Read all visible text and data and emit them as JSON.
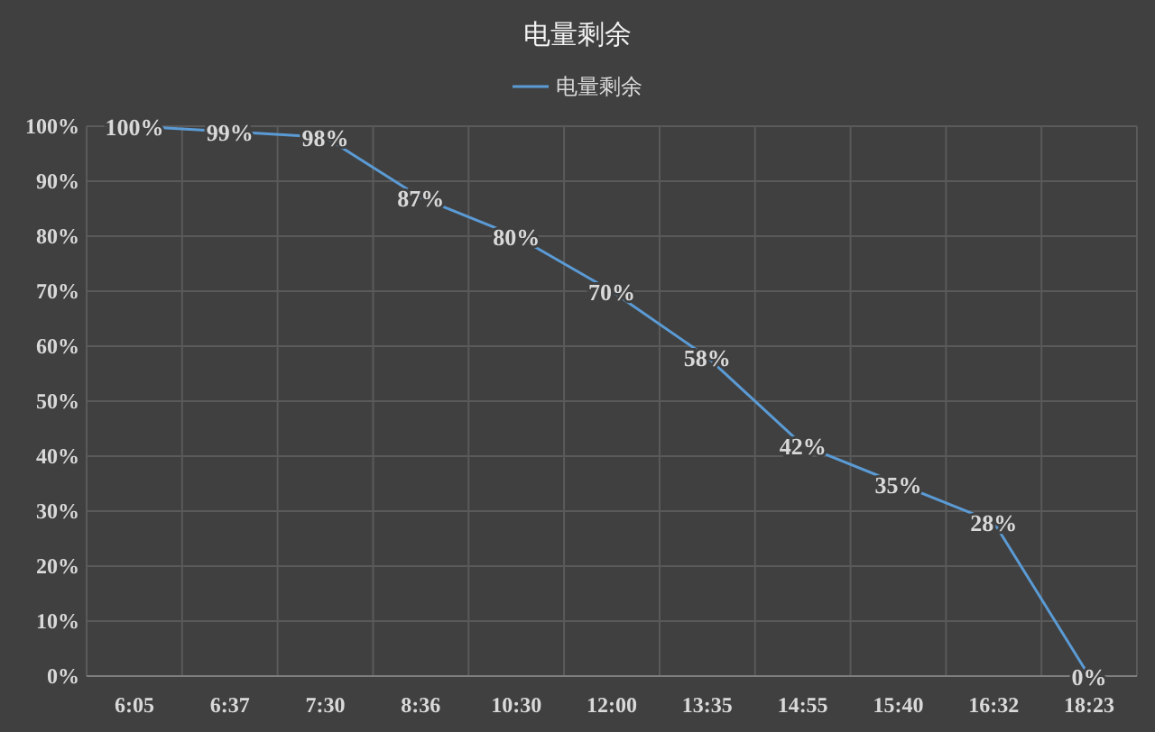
{
  "chart_data": {
    "type": "line",
    "title": "电量剩余",
    "categories": [
      "6:05",
      "6:37",
      "7:30",
      "8:36",
      "10:30",
      "12:00",
      "13:35",
      "14:55",
      "15:40",
      "16:32",
      "18:23"
    ],
    "series": [
      {
        "name": "电量剩余",
        "color": "#5b9bd5",
        "values": [
          100,
          99,
          98,
          87,
          80,
          70,
          58,
          42,
          35,
          28,
          0
        ],
        "value_labels": [
          "100%",
          "99%",
          "98%",
          "87%",
          "80%",
          "70%",
          "58%",
          "42%",
          "35%",
          "28%",
          "0%"
        ]
      }
    ],
    "ylim": [
      0,
      100
    ],
    "yticks": [
      {
        "value": 0,
        "label": "0%"
      },
      {
        "value": 10,
        "label": "10%"
      },
      {
        "value": 20,
        "label": "20%"
      },
      {
        "value": 30,
        "label": "30%"
      },
      {
        "value": 40,
        "label": "40%"
      },
      {
        "value": 50,
        "label": "50%"
      },
      {
        "value": 60,
        "label": "60%"
      },
      {
        "value": 70,
        "label": "70%"
      },
      {
        "value": 80,
        "label": "80%"
      },
      {
        "value": 90,
        "label": "90%"
      },
      {
        "value": 100,
        "label": "100%"
      }
    ],
    "grid": true,
    "legend": "top",
    "marker": "none",
    "line_style": "solid"
  }
}
